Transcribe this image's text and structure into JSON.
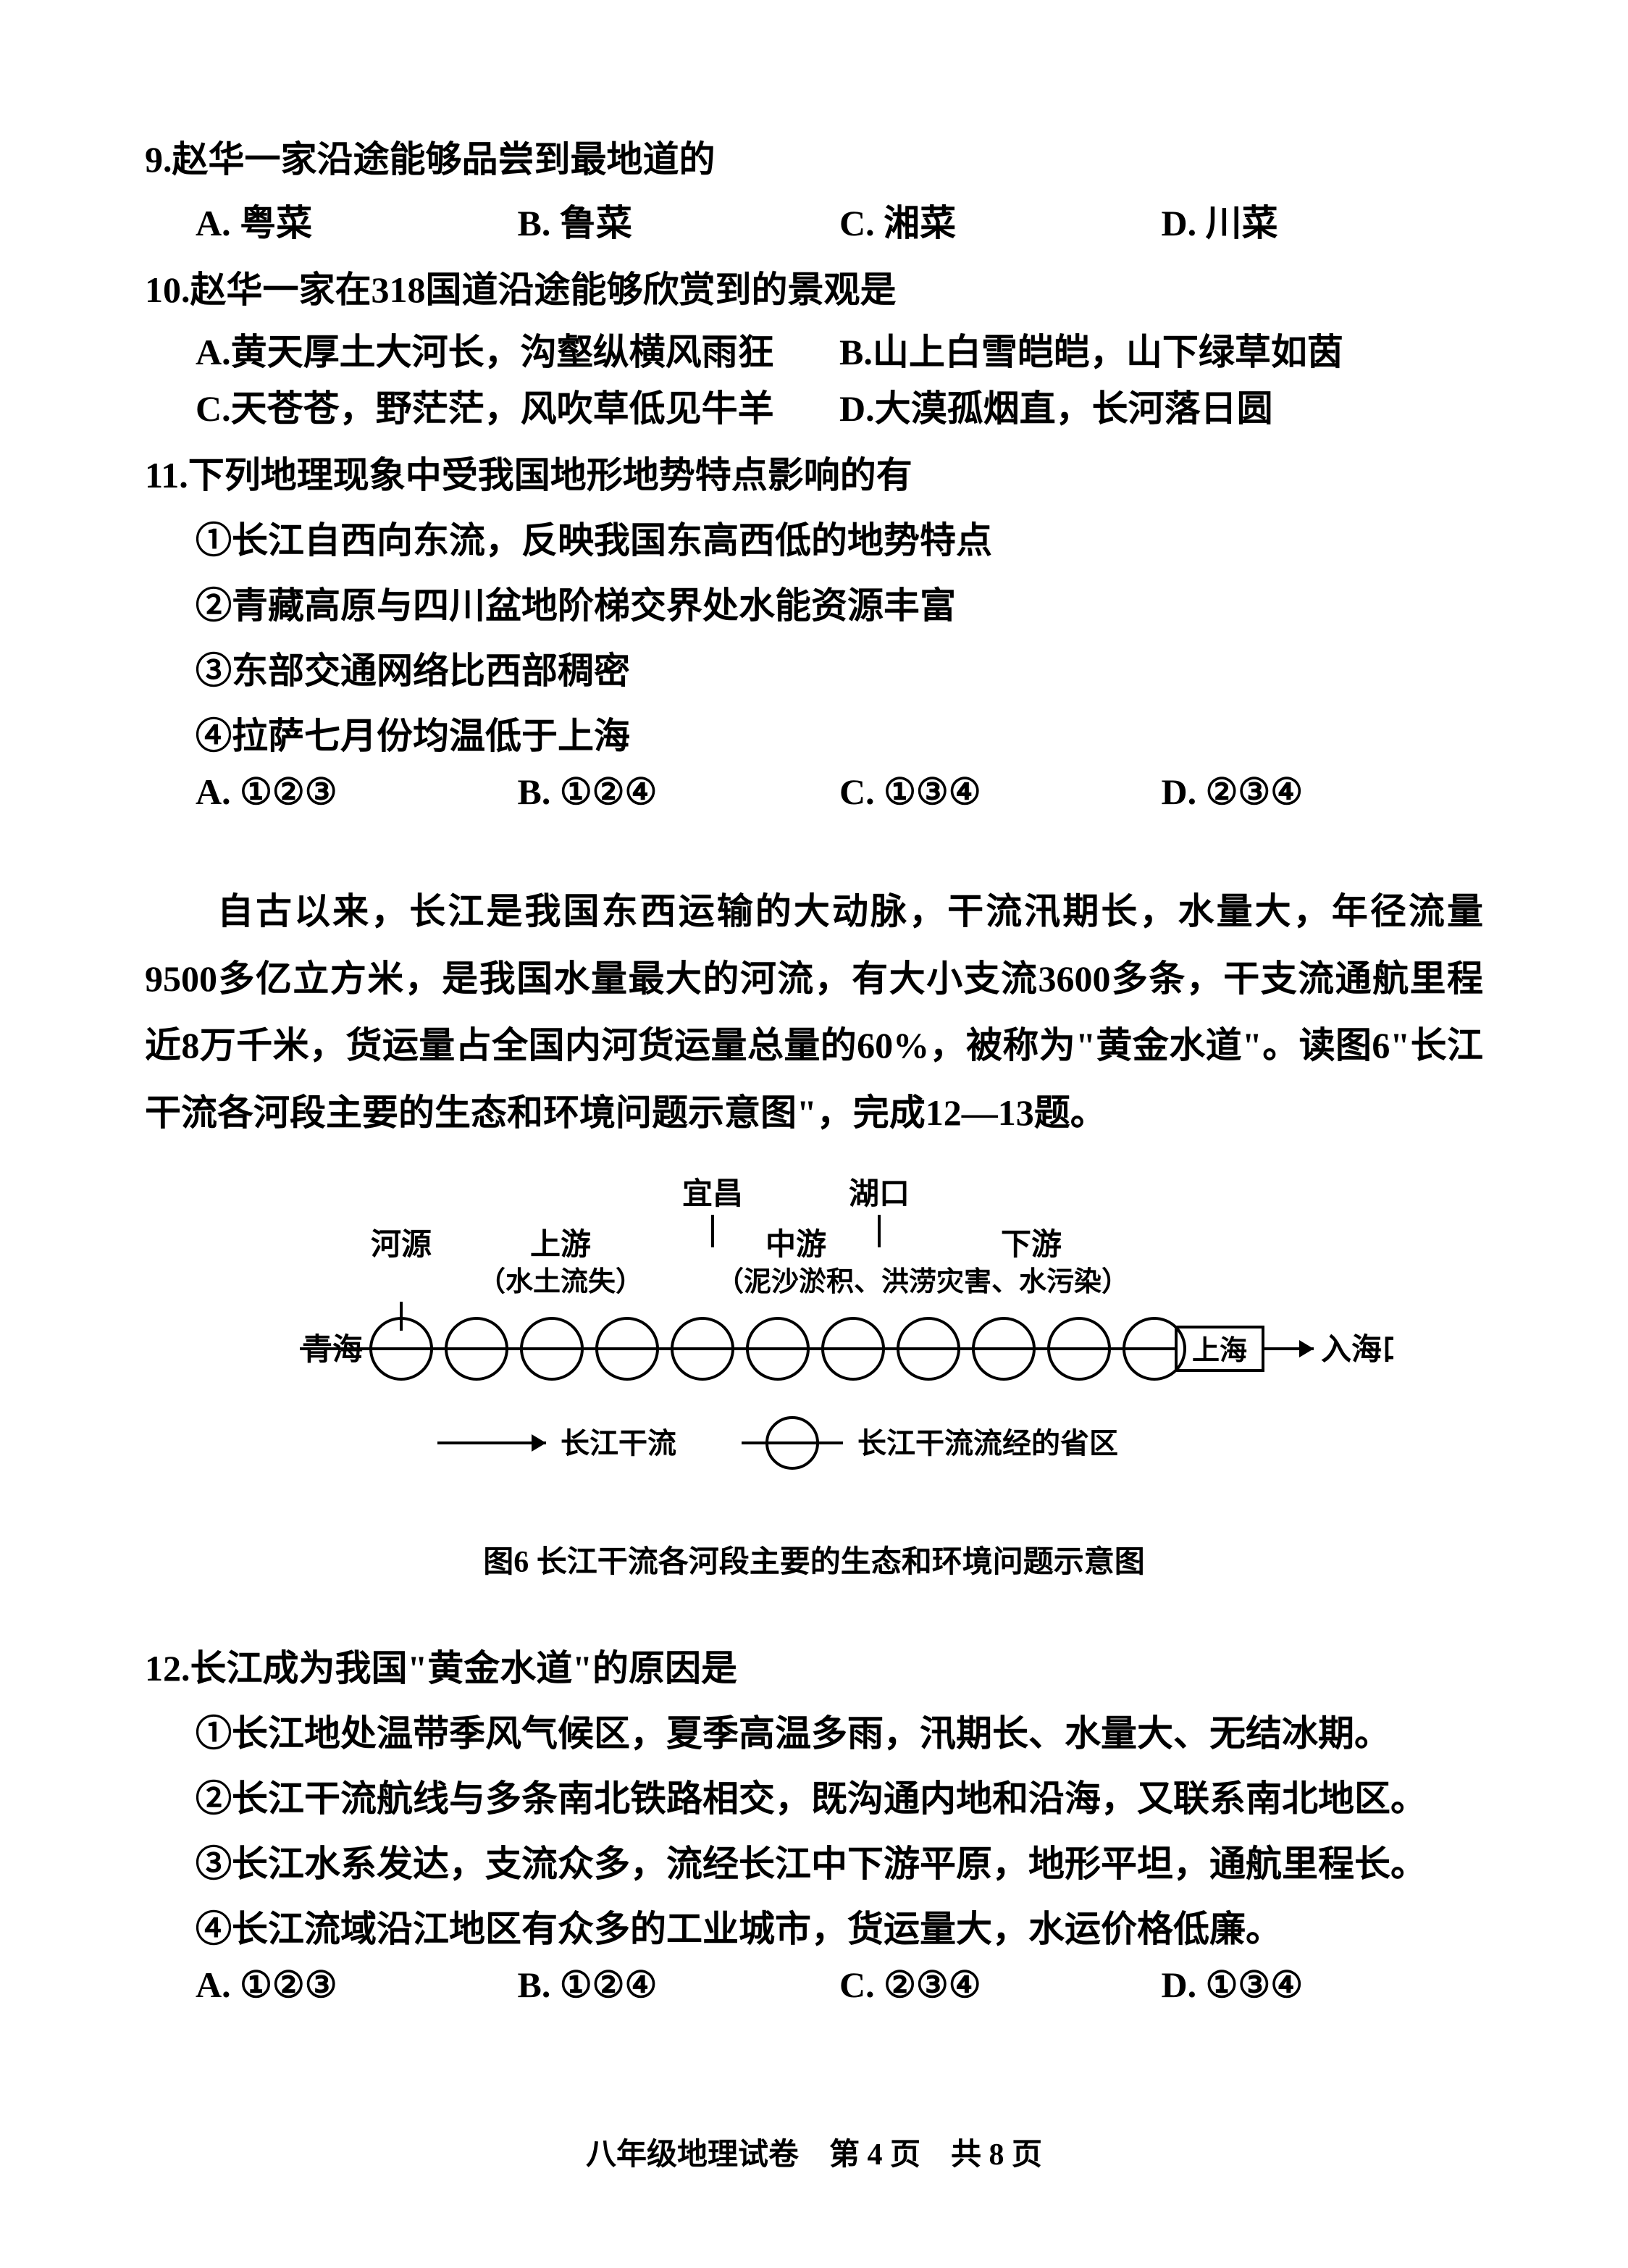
{
  "q9": {
    "stem": "9.赵华一家沿途能够品尝到最地道的",
    "opts": {
      "A": "A. 粤菜",
      "B": "B. 鲁菜",
      "C": "C. 湘菜",
      "D": "D. 川菜"
    }
  },
  "q10": {
    "stem": "10.赵华一家在318国道沿途能够欣赏到的景观是",
    "A": "A.黄天厚土大河长，沟壑纵横风雨狂",
    "B": "B.山上白雪皑皑，山下绿草如茵",
    "C": "C.天苍苍，野茫茫，风吹草低见牛羊",
    "D": "D.大漠孤烟直，长河落日圆"
  },
  "q11": {
    "stem": "11.下列地理现象中受我国地形地势特点影响的有",
    "s1": "①长江自西向东流，反映我国东高西低的地势特点",
    "s2": "②青藏高原与四川盆地阶梯交界处水能资源丰富",
    "s3": "③东部交通网络比西部稠密",
    "s4": "④拉萨七月份均温低于上海",
    "opts": {
      "A": "A. ①②③",
      "B": "B. ①②④",
      "C": "C. ①③④",
      "D": "D. ②③④"
    }
  },
  "passage": "自古以来，长江是我国东西运输的大动脉，干流汛期长，水量大，年径流量9500多亿立方米，是我国水量最大的河流，有大小支流3600多条，干支流通航里程近8万千米，货运量占全国内河货运量总量的60%，被称为\"黄金水道\"。读图6\"长江干流各河段主要的生态和环境问题示意图\"，完成12—13题。",
  "diagram": {
    "yichang": "宜昌",
    "hukou": "湖口",
    "heyuan": "河源",
    "shangyou": "上游",
    "zhongyou": "中游",
    "xiayou": "下游",
    "shuitu": "（水土流失）",
    "nisha": "（泥沙淤积、洪涝灾害、水污染）",
    "qinghai": "青海",
    "shanghai": "上海",
    "ruhaikou": "入海口",
    "legend_ganliu": "长江干流",
    "legend_shengqu": "长江干流流经的省区",
    "caption": "图6 长江干流各河段主要的生态和环境问题示意图",
    "circle_count": 11,
    "stroke": "#000000",
    "stroke_width": 4
  },
  "q12": {
    "stem": "12.长江成为我国\"黄金水道\"的原因是",
    "s1": "①长江地处温带季风气候区，夏季高温多雨，汛期长、水量大、无结冰期。",
    "s2": "②长江干流航线与多条南北铁路相交，既沟通内地和沿海，又联系南北地区。",
    "s3": "③长江水系发达，支流众多，流经长江中下游平原，地形平坦，通航里程长。",
    "s4": "④长江流域沿江地区有众多的工业城市，货运量大，水运价格低廉。",
    "opts": {
      "A": "A. ①②③",
      "B": "B. ①②④",
      "C": "C. ②③④",
      "D": "D. ①③④"
    }
  },
  "footer": "八年级地理试卷　第 4 页　共 8 页"
}
